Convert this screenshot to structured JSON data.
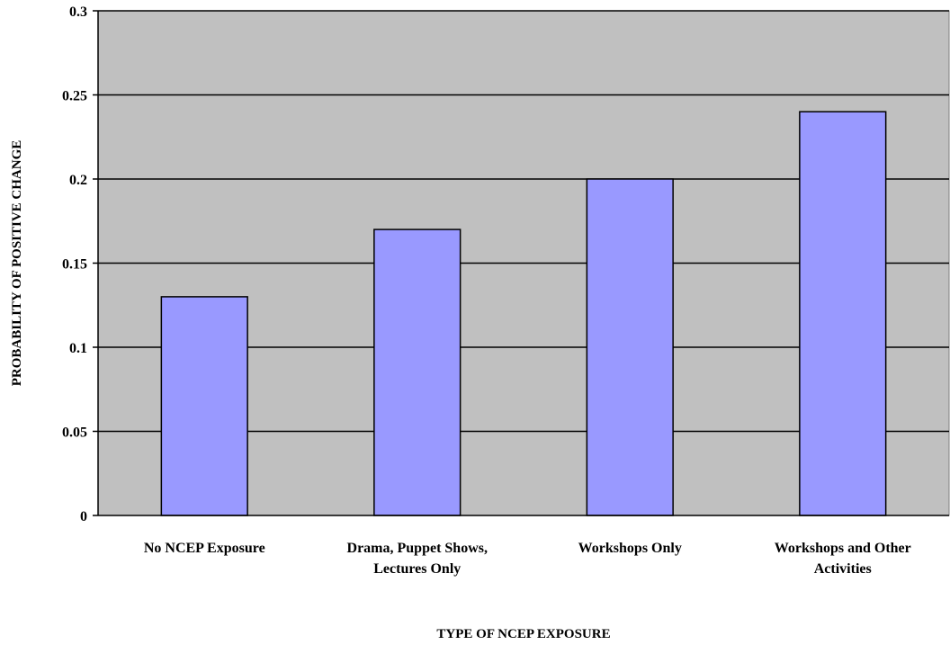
{
  "chart_data": {
    "type": "bar",
    "title": "",
    "xlabel": "TYPE OF NCEP EXPOSURE",
    "ylabel": "PROBABILITY OF POSITIVE CHANGE",
    "ylim": [
      0,
      0.3
    ],
    "yticks": [
      "0",
      "0.05",
      "0.1",
      "0.15",
      "0.2",
      "0.25",
      "0.3"
    ],
    "grid": true,
    "legend": "none",
    "categories": [
      [
        "No NCEP Exposure"
      ],
      [
        "Drama, Puppet Shows,",
        "Lectures Only"
      ],
      [
        "Workshops Only"
      ],
      [
        "Workshops and Other",
        "Activities"
      ]
    ],
    "values": [
      0.13,
      0.17,
      0.2,
      0.24
    ],
    "colors": {
      "plot_background": "#c0c0c0",
      "bar_fill": "#9999ff",
      "bar_stroke": "#000000",
      "gridline": "#000000"
    }
  }
}
